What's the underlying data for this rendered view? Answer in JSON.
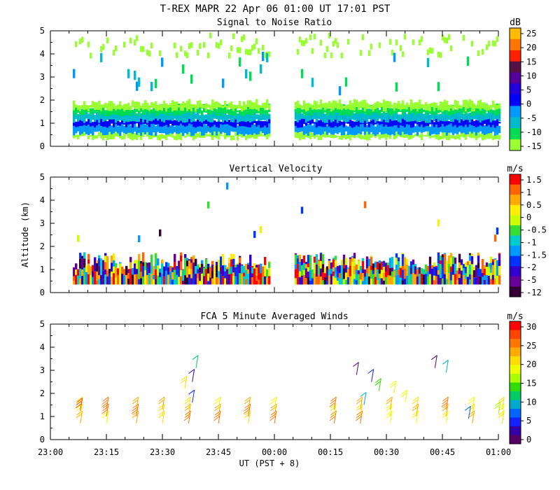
{
  "figure": {
    "title": "T-REX  MAPR 22 Apr 06  01:00 UT  17:01  PST",
    "xlabel": "UT  (PST + 8)",
    "ylabel": "Altitude (km)"
  },
  "chart_data": [
    {
      "id": "snr",
      "type": "heatmap",
      "title": "Signal to Noise Ratio",
      "unit": "dB",
      "x_range_hours": [
        23.0,
        25.0
      ],
      "data_gap_hours": [
        23.98,
        24.09
      ],
      "ylim": [
        0,
        5
      ],
      "yticks": [
        "0",
        "1",
        "2",
        "3",
        "4",
        "5"
      ],
      "colorbar": {
        "labels": [
          "25",
          "20",
          "15",
          "10",
          "5",
          "0",
          "-5",
          "-10",
          "-15"
        ],
        "colors": [
          "#ffbb00",
          "#ff7700",
          "#ff2200",
          "#551144",
          "#550099",
          "#2200dd",
          "#0000ff",
          "#0099ff",
          "#00bbcc",
          "#00dd55",
          "#99ff33"
        ]
      }
    },
    {
      "id": "vv",
      "type": "heatmap",
      "title": "Vertical Velocity",
      "unit": "m/s",
      "x_range_hours": [
        23.0,
        25.0
      ],
      "data_gap_hours": [
        23.98,
        24.09
      ],
      "ylim": [
        0,
        5
      ],
      "yticks": [
        "0",
        "1",
        "2",
        "3",
        "4",
        "5"
      ],
      "colorbar": {
        "labels": [
          "1.5",
          "1",
          "0.5",
          "0",
          "-0.5",
          "-1",
          "-1.5",
          "-2",
          "-5",
          "-12"
        ],
        "colors": [
          "#ff0000",
          "#ff6600",
          "#ffaa00",
          "#ffee00",
          "#ccff00",
          "#33dd33",
          "#00cccc",
          "#0099ff",
          "#0033ff",
          "#3300cc",
          "#660099",
          "#330033"
        ]
      }
    },
    {
      "id": "winds",
      "type": "scatter",
      "title": "FCA 5 Minute Averaged Winds",
      "unit": "m/s",
      "ylim": [
        0,
        5
      ],
      "yticks": [
        "0",
        "1",
        "2",
        "3",
        "4",
        "5"
      ],
      "xticks": [
        "23:00",
        "23:15",
        "23:30",
        "23:45",
        "00:00",
        "00:15",
        "00:30",
        "00:45",
        "01:00"
      ],
      "colorbar": {
        "labels": [
          "30",
          "25",
          "20",
          "15",
          "10",
          "5",
          "0"
        ],
        "colors": [
          "#ff0000",
          "#ff4400",
          "#ff7700",
          "#ffaa00",
          "#ffdd00",
          "#eeff00",
          "#aaff00",
          "#33dd00",
          "#00cc66",
          "#00aacc",
          "#0066ff",
          "#1122ff",
          "#3300aa",
          "#550066"
        ]
      },
      "barb_times_min": [
        8,
        15,
        23,
        30,
        37,
        45,
        53,
        60,
        76,
        83,
        91,
        98,
        106,
        113,
        121
      ],
      "barb_levels_km": [
        0.15,
        0.45,
        0.75
      ],
      "upper_barbs": [
        {
          "t_min": 8,
          "alt_km": 1.25,
          "speed": 28
        },
        {
          "t_min": 36,
          "alt_km": 2.2,
          "speed": 20
        },
        {
          "t_min": 38,
          "alt_km": 2.5,
          "speed": 3
        },
        {
          "t_min": 39,
          "alt_km": 3.1,
          "speed": 12
        },
        {
          "t_min": 38,
          "alt_km": 1.6,
          "speed": 5
        },
        {
          "t_min": 82,
          "alt_km": 2.8,
          "speed": 1
        },
        {
          "t_min": 86,
          "alt_km": 2.5,
          "speed": 4
        },
        {
          "t_min": 88,
          "alt_km": 2.1,
          "speed": 15
        },
        {
          "t_min": 84,
          "alt_km": 1.5,
          "speed": 10
        },
        {
          "t_min": 92,
          "alt_km": 2.0,
          "speed": 19
        },
        {
          "t_min": 95,
          "alt_km": 1.6,
          "speed": 19
        },
        {
          "t_min": 103,
          "alt_km": 3.1,
          "speed": 1
        },
        {
          "t_min": 106,
          "alt_km": 2.9,
          "speed": 9
        },
        {
          "t_min": 112,
          "alt_km": 0.9,
          "speed": 7
        },
        {
          "t_min": 120,
          "alt_km": 1.1,
          "speed": 17
        }
      ]
    }
  ]
}
